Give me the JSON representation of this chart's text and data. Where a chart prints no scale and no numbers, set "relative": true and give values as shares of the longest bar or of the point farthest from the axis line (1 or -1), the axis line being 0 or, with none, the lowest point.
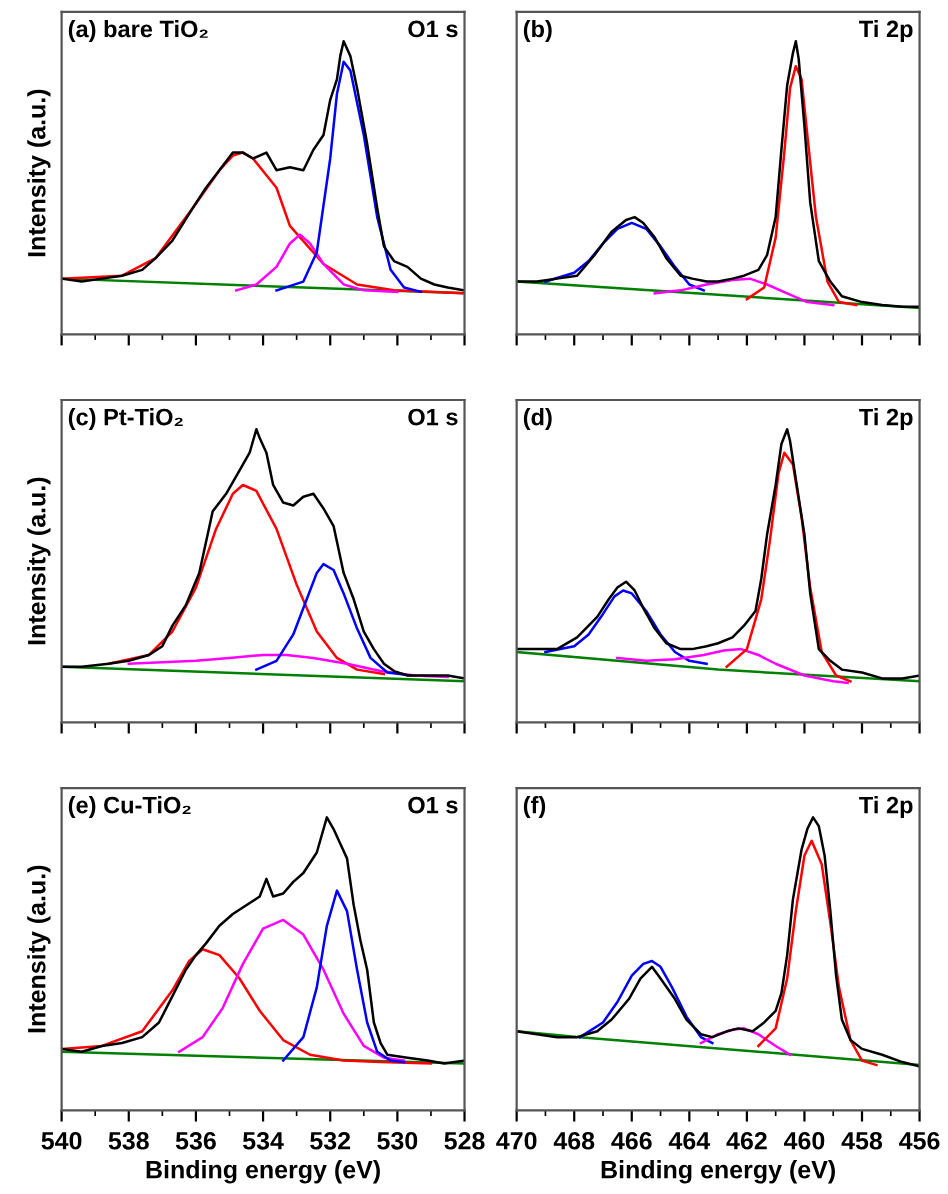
{
  "chart_data": [
    {
      "type": "line",
      "relative": true,
      "annotations": [
        "(a) bare TiO₂",
        "O1 s"
      ],
      "ylabel": "Intensity (a.u.)",
      "tick_labels": false,
      "xlim": [
        540,
        528
      ],
      "xticks": [
        540,
        {
          "value": 539,
          "label": null
        },
        538,
        {
          "value": 537,
          "label": null
        },
        536,
        {
          "value": 535,
          "label": null
        },
        534,
        {
          "value": 533,
          "label": null
        },
        532,
        {
          "value": 531,
          "label": null
        },
        530,
        {
          "value": 529,
          "label": null
        },
        528
      ],
      "series": [
        {
          "color": "#008000",
          "x": [
            540,
            528
          ],
          "values": [
            0.19,
            0.14
          ]
        },
        {
          "color": "#ff0000",
          "x": [
            540,
            538.2,
            537.2,
            536.1,
            535.3,
            534.9,
            534.6,
            534.3,
            533.6,
            533.2,
            532.2,
            531.2,
            530.1,
            528.0
          ],
          "values": [
            0.19,
            0.2,
            0.26,
            0.43,
            0.56,
            0.61,
            0.62,
            0.6,
            0.5,
            0.37,
            0.24,
            0.17,
            0.15,
            0.14
          ]
        },
        {
          "color": "#ff00ff",
          "x": [
            534.8,
            534.2,
            533.6,
            533.2,
            532.9,
            532.6,
            532.2,
            531.6,
            531.0,
            530.0
          ],
          "values": [
            0.15,
            0.17,
            0.23,
            0.31,
            0.34,
            0.31,
            0.24,
            0.17,
            0.15,
            0.145
          ]
        },
        {
          "color": "#0000ff",
          "x": [
            533.6,
            532.8,
            532.4,
            532.0,
            531.8,
            531.6,
            531.4,
            531.0,
            530.6,
            530.2,
            529.8,
            529.3
          ],
          "values": [
            0.15,
            0.18,
            0.28,
            0.6,
            0.82,
            0.93,
            0.9,
            0.68,
            0.4,
            0.22,
            0.16,
            0.145
          ]
        },
        {
          "color": "#000000",
          "x": [
            540,
            539.4,
            538.8,
            538.2,
            537.6,
            537.2,
            536.7,
            536.1,
            535.7,
            535.3,
            534.9,
            534.6,
            534.3,
            533.9,
            533.6,
            533.2,
            532.8,
            532.5,
            532.2,
            532.0,
            531.8,
            531.7,
            531.6,
            531.4,
            531.2,
            530.9,
            530.6,
            530.4,
            530.1,
            529.7,
            529.3,
            528.9,
            528.5,
            528.0
          ],
          "values": [
            0.19,
            0.18,
            0.19,
            0.2,
            0.22,
            0.26,
            0.32,
            0.43,
            0.5,
            0.56,
            0.62,
            0.62,
            0.6,
            0.62,
            0.56,
            0.57,
            0.56,
            0.63,
            0.68,
            0.8,
            0.87,
            0.95,
            1.0,
            0.95,
            0.84,
            0.65,
            0.43,
            0.3,
            0.25,
            0.23,
            0.19,
            0.17,
            0.16,
            0.15
          ]
        }
      ]
    },
    {
      "type": "line",
      "relative": true,
      "annotations": [
        "(b)",
        "Ti 2p"
      ],
      "tick_labels": false,
      "xlim": [
        470,
        456
      ],
      "xticks": [
        470,
        {
          "value": 469,
          "label": null
        },
        468,
        {
          "value": 467,
          "label": null
        },
        466,
        {
          "value": 465,
          "label": null
        },
        464,
        {
          "value": 463,
          "label": null
        },
        462,
        {
          "value": 461,
          "label": null
        },
        460,
        {
          "value": 459,
          "label": null
        },
        458,
        {
          "value": 457,
          "label": null
        },
        456
      ],
      "series": [
        {
          "color": "#008000",
          "x": [
            470,
            456
          ],
          "values": [
            0.18,
            0.09
          ]
        },
        {
          "color": "#0000ff",
          "x": [
            469,
            468,
            467.5,
            467,
            466.5,
            466,
            465.5,
            465,
            464.5,
            464,
            463.5
          ],
          "values": [
            0.18,
            0.21,
            0.25,
            0.31,
            0.36,
            0.38,
            0.36,
            0.3,
            0.23,
            0.17,
            0.15
          ]
        },
        {
          "color": "#ff00ff",
          "x": [
            465.2,
            464.3,
            463.4,
            462.5,
            461.9,
            461.3,
            460.6,
            459.9,
            459.0
          ],
          "values": [
            0.14,
            0.15,
            0.17,
            0.185,
            0.19,
            0.17,
            0.14,
            0.11,
            0.1
          ]
        },
        {
          "color": "#ff0000",
          "x": [
            462.0,
            461.4,
            461.0,
            460.7,
            460.5,
            460.3,
            460.1,
            459.9,
            459.6,
            459.2,
            458.8,
            458.2
          ],
          "values": [
            0.12,
            0.16,
            0.33,
            0.62,
            0.84,
            0.915,
            0.87,
            0.68,
            0.4,
            0.18,
            0.11,
            0.1
          ]
        },
        {
          "color": "#000000",
          "x": [
            470,
            469.3,
            468.6,
            467.9,
            467.3,
            466.7,
            466.2,
            465.9,
            465.6,
            465.2,
            464.8,
            464.3,
            463.9,
            463.4,
            463.0,
            462.5,
            462.1,
            461.6,
            461.3,
            461.0,
            460.8,
            460.6,
            460.4,
            460.3,
            460.2,
            460.0,
            459.8,
            459.5,
            459.1,
            458.7,
            458.0,
            457.3,
            456.6,
            456.0
          ],
          "values": [
            0.18,
            0.18,
            0.19,
            0.2,
            0.27,
            0.35,
            0.39,
            0.4,
            0.38,
            0.33,
            0.26,
            0.2,
            0.19,
            0.18,
            0.18,
            0.19,
            0.2,
            0.22,
            0.27,
            0.4,
            0.63,
            0.85,
            0.96,
            1.0,
            0.94,
            0.71,
            0.45,
            0.25,
            0.18,
            0.13,
            0.11,
            0.1,
            0.094,
            0.094
          ]
        }
      ]
    },
    {
      "type": "line",
      "relative": true,
      "annotations": [
        "(c) Pt-TiO₂",
        "O1 s"
      ],
      "ylabel": "Intensity (a.u.)",
      "tick_labels": false,
      "xlim": [
        540,
        528
      ],
      "xticks": [
        540,
        {
          "value": 539,
          "label": null
        },
        538,
        {
          "value": 537,
          "label": null
        },
        536,
        {
          "value": 535,
          "label": null
        },
        534,
        {
          "value": 533,
          "label": null
        },
        532,
        {
          "value": 531,
          "label": null
        },
        530,
        {
          "value": 529,
          "label": null
        },
        528
      ],
      "series": [
        {
          "color": "#008000",
          "x": [
            540,
            528
          ],
          "values": [
            0.19,
            0.14
          ]
        },
        {
          "color": "#ff0000",
          "x": [
            538.6,
            537.4,
            536.7,
            536.0,
            535.4,
            534.9,
            534.6,
            534.2,
            533.6,
            533.0,
            532.4,
            531.8,
            531.2,
            530.4
          ],
          "values": [
            0.2,
            0.23,
            0.31,
            0.46,
            0.66,
            0.78,
            0.81,
            0.79,
            0.66,
            0.47,
            0.31,
            0.22,
            0.18,
            0.165
          ]
        },
        {
          "color": "#ff00ff",
          "x": [
            538.0,
            537.0,
            536.0,
            535.0,
            534.0,
            533.3,
            532.5,
            531.5,
            530.5,
            529.5,
            528.5
          ],
          "values": [
            0.2,
            0.205,
            0.21,
            0.22,
            0.23,
            0.23,
            0.22,
            0.2,
            0.175,
            0.16,
            0.155
          ]
        },
        {
          "color": "#0000ff",
          "x": [
            534.2,
            533.6,
            533.1,
            532.7,
            532.4,
            532.2,
            531.9,
            531.6,
            531.2,
            530.8,
            530.3,
            529.6
          ],
          "values": [
            0.18,
            0.21,
            0.3,
            0.42,
            0.51,
            0.54,
            0.52,
            0.44,
            0.32,
            0.22,
            0.17,
            0.16
          ]
        },
        {
          "color": "#000000",
          "x": [
            540,
            539.4,
            538.6,
            538.0,
            537.4,
            537.0,
            536.7,
            536.3,
            535.9,
            535.5,
            535.1,
            534.7,
            534.4,
            534.2,
            534.1,
            533.9,
            533.7,
            533.4,
            533.1,
            532.8,
            532.5,
            532.2,
            531.9,
            531.6,
            531.3,
            531.0,
            530.7,
            530.4,
            530.1,
            529.7,
            529.1,
            528.5,
            528.0
          ],
          "values": [
            0.19,
            0.19,
            0.2,
            0.21,
            0.23,
            0.26,
            0.33,
            0.4,
            0.51,
            0.72,
            0.78,
            0.86,
            0.92,
            1.0,
            0.97,
            0.92,
            0.81,
            0.75,
            0.74,
            0.77,
            0.78,
            0.73,
            0.67,
            0.51,
            0.42,
            0.31,
            0.25,
            0.2,
            0.175,
            0.16,
            0.16,
            0.16,
            0.15
          ]
        }
      ]
    },
    {
      "type": "line",
      "relative": true,
      "annotations": [
        "(d)",
        "Ti 2p"
      ],
      "tick_labels": false,
      "xlim": [
        470,
        456
      ],
      "xticks": [
        470,
        {
          "value": 469,
          "label": null
        },
        468,
        {
          "value": 467,
          "label": null
        },
        466,
        {
          "value": 465,
          "label": null
        },
        464,
        {
          "value": 463,
          "label": null
        },
        462,
        {
          "value": 461,
          "label": null
        },
        460,
        {
          "value": 459,
          "label": null
        },
        458,
        {
          "value": 457,
          "label": null
        },
        456
      ],
      "series": [
        {
          "color": "#008000",
          "x": [
            470,
            463,
            456
          ],
          "values": [
            0.24,
            0.18,
            0.14
          ]
        },
        {
          "color": "#0000ff",
          "x": [
            469.0,
            468.0,
            467.5,
            467.0,
            466.6,
            466.3,
            466.0,
            465.5,
            465.0,
            464.5,
            464.0,
            463.4
          ],
          "values": [
            0.24,
            0.26,
            0.3,
            0.37,
            0.43,
            0.45,
            0.44,
            0.38,
            0.3,
            0.24,
            0.21,
            0.2
          ]
        },
        {
          "color": "#ff00ff",
          "x": [
            466.5,
            465.5,
            464.5,
            463.5,
            462.8,
            462.2,
            461.6,
            461.0,
            460.0,
            459.0,
            458.5
          ],
          "values": [
            0.22,
            0.21,
            0.215,
            0.23,
            0.245,
            0.25,
            0.23,
            0.2,
            0.16,
            0.14,
            0.135
          ]
        },
        {
          "color": "#ff0000",
          "x": [
            462.7,
            462.0,
            461.5,
            461.2,
            460.9,
            460.7,
            460.4,
            460.1,
            459.8,
            459.4,
            458.9,
            458.4
          ],
          "values": [
            0.19,
            0.25,
            0.42,
            0.62,
            0.85,
            0.92,
            0.88,
            0.7,
            0.46,
            0.24,
            0.16,
            0.14
          ]
        },
        {
          "color": "#000000",
          "x": [
            470,
            469.3,
            468.6,
            467.9,
            467.2,
            466.8,
            466.5,
            466.2,
            465.9,
            465.6,
            465.2,
            464.8,
            464.3,
            463.9,
            463.4,
            463.0,
            462.5,
            462.1,
            461.7,
            461.5,
            461.3,
            461.0,
            460.8,
            460.6,
            460.5,
            460.3,
            460.0,
            459.8,
            459.5,
            459.1,
            458.7,
            458.0,
            457.3,
            456.6,
            456.0
          ],
          "values": [
            0.25,
            0.25,
            0.25,
            0.29,
            0.36,
            0.42,
            0.46,
            0.48,
            0.45,
            0.39,
            0.32,
            0.27,
            0.25,
            0.25,
            0.26,
            0.27,
            0.29,
            0.33,
            0.38,
            0.49,
            0.64,
            0.81,
            0.95,
            1.0,
            0.96,
            0.83,
            0.64,
            0.44,
            0.25,
            0.21,
            0.18,
            0.17,
            0.15,
            0.15,
            0.16
          ]
        }
      ]
    },
    {
      "type": "line",
      "relative": true,
      "annotations": [
        "(e) Cu-TiO₂",
        "O1 s"
      ],
      "ylabel": "Intensity (a.u.)",
      "xlabel": "Binding energy (eV)",
      "tick_labels": "x",
      "xlim": [
        540,
        528
      ],
      "xticks": [
        540,
        {
          "value": 539,
          "label": null
        },
        538,
        {
          "value": 537,
          "label": null
        },
        536,
        {
          "value": 535,
          "label": null
        },
        534,
        {
          "value": 533,
          "label": null
        },
        532,
        {
          "value": 531,
          "label": null
        },
        530,
        {
          "value": 529,
          "label": null
        },
        528
      ],
      "series": [
        {
          "color": "#008000",
          "x": [
            540,
            528
          ],
          "values": [
            0.2,
            0.16
          ]
        },
        {
          "color": "#ff0000",
          "x": [
            540,
            538.8,
            537.6,
            536.7,
            536.2,
            535.8,
            535.3,
            534.7,
            534.1,
            533.4,
            532.6,
            531.6,
            530.5,
            529.0
          ],
          "values": [
            0.21,
            0.22,
            0.27,
            0.41,
            0.51,
            0.55,
            0.53,
            0.45,
            0.34,
            0.24,
            0.19,
            0.17,
            0.165,
            0.16
          ]
        },
        {
          "color": "#ff00ff",
          "x": [
            536.5,
            535.8,
            535.2,
            534.6,
            534.0,
            533.4,
            532.8,
            532.2,
            531.6,
            531.0,
            530.4,
            529.8
          ],
          "values": [
            0.2,
            0.25,
            0.35,
            0.5,
            0.62,
            0.65,
            0.6,
            0.48,
            0.33,
            0.22,
            0.18,
            0.17
          ]
        },
        {
          "color": "#0000ff",
          "x": [
            533.4,
            532.8,
            532.4,
            532.1,
            531.8,
            531.5,
            531.2,
            530.9,
            530.6,
            530.2,
            529.8
          ],
          "values": [
            0.17,
            0.25,
            0.42,
            0.63,
            0.75,
            0.68,
            0.48,
            0.3,
            0.2,
            0.17,
            0.165
          ]
        },
        {
          "color": "#000000",
          "x": [
            540,
            539.4,
            538.8,
            538.2,
            537.6,
            537.1,
            536.7,
            536.3,
            536.0,
            535.7,
            535.3,
            534.9,
            534.5,
            534.1,
            533.9,
            533.7,
            533.4,
            533.1,
            532.8,
            532.4,
            532.1,
            531.9,
            531.7,
            531.5,
            531.3,
            531.1,
            530.9,
            530.7,
            530.5,
            530.3,
            529.7,
            529.1,
            528.6,
            528.0
          ],
          "values": [
            0.21,
            0.2,
            0.22,
            0.23,
            0.25,
            0.3,
            0.39,
            0.48,
            0.53,
            0.57,
            0.63,
            0.67,
            0.7,
            0.73,
            0.79,
            0.73,
            0.74,
            0.78,
            0.81,
            0.88,
            1.0,
            0.96,
            0.91,
            0.86,
            0.7,
            0.58,
            0.48,
            0.3,
            0.23,
            0.19,
            0.18,
            0.17,
            0.16,
            0.17
          ]
        }
      ]
    },
    {
      "type": "line",
      "relative": true,
      "annotations": [
        "(f)",
        "Ti 2p"
      ],
      "xlabel": "Binding energy (eV)",
      "tick_labels": "x",
      "xlim": [
        470,
        456
      ],
      "xticks": [
        470,
        {
          "value": 469,
          "label": null
        },
        468,
        {
          "value": 467,
          "label": null
        },
        466,
        {
          "value": 465,
          "label": null
        },
        464,
        {
          "value": 463,
          "label": null
        },
        462,
        {
          "value": 461,
          "label": null
        },
        460,
        {
          "value": 459,
          "label": null
        },
        458,
        {
          "value": 457,
          "label": null
        },
        456
      ],
      "series": [
        {
          "color": "#008000",
          "x": [
            470,
            467.8,
            456
          ],
          "values": [
            0.27,
            0.25,
            0.155
          ]
        },
        {
          "color": "#0000ff",
          "x": [
            467.8,
            467.0,
            466.5,
            466.0,
            465.6,
            465.3,
            465.0,
            464.6,
            464.1,
            463.6,
            463.2
          ],
          "values": [
            0.25,
            0.3,
            0.37,
            0.46,
            0.5,
            0.51,
            0.49,
            0.42,
            0.32,
            0.25,
            0.23
          ]
        },
        {
          "color": "#ff00ff",
          "x": [
            463.6,
            463.0,
            462.5,
            462.1,
            461.6,
            461.0,
            460.5
          ],
          "values": [
            0.23,
            0.26,
            0.275,
            0.28,
            0.26,
            0.22,
            0.19
          ]
        },
        {
          "color": "#ff0000",
          "x": [
            461.6,
            461.0,
            460.6,
            460.3,
            460.0,
            459.75,
            459.4,
            459.1,
            458.8,
            458.4,
            458.0,
            457.5
          ],
          "values": [
            0.22,
            0.28,
            0.45,
            0.68,
            0.87,
            0.92,
            0.84,
            0.64,
            0.42,
            0.24,
            0.17,
            0.155
          ]
        },
        {
          "color": "#000000",
          "x": [
            470,
            469.3,
            468.6,
            467.9,
            467.2,
            466.7,
            466.1,
            465.7,
            465.3,
            465.0,
            464.5,
            464.1,
            463.6,
            463.2,
            462.7,
            462.3,
            461.8,
            461.4,
            461.0,
            460.8,
            460.6,
            460.4,
            460.1,
            459.9,
            459.7,
            459.5,
            459.3,
            459.1,
            458.9,
            458.7,
            458.4,
            458.0,
            457.3,
            456.6,
            456.0
          ],
          "values": [
            0.27,
            0.26,
            0.25,
            0.25,
            0.27,
            0.31,
            0.38,
            0.45,
            0.49,
            0.45,
            0.38,
            0.31,
            0.26,
            0.25,
            0.27,
            0.28,
            0.27,
            0.3,
            0.34,
            0.4,
            0.53,
            0.72,
            0.89,
            0.96,
            1.0,
            0.97,
            0.87,
            0.68,
            0.46,
            0.31,
            0.24,
            0.21,
            0.19,
            0.165,
            0.15
          ]
        }
      ]
    }
  ]
}
